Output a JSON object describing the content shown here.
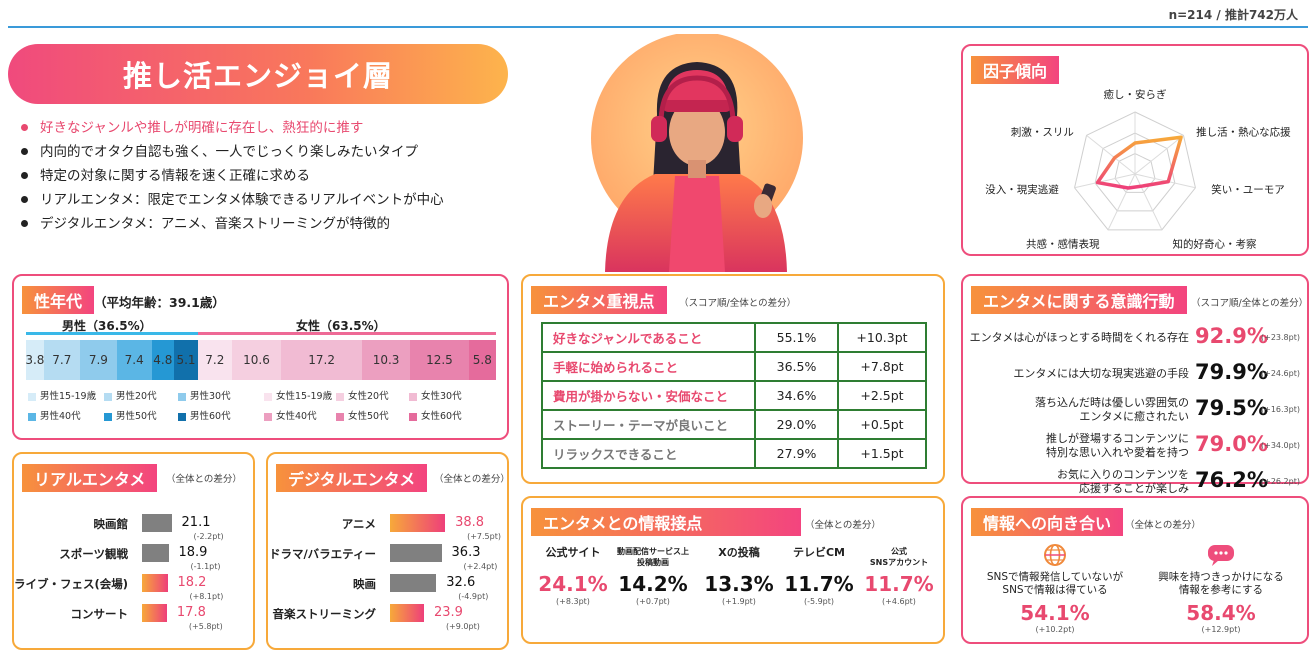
{
  "header": {
    "sample": "n=214 / 推計742万人"
  },
  "hero": {
    "title": "推し活エンジョイ層"
  },
  "bullets": [
    "好きなジャンルや推しが明確に存在し、熱狂的に推す",
    "内向的でオタク自認も強く、一人でじっくり楽しみたいタイプ",
    "特定の対象に関する情報を速く正確に求める",
    "リアルエンタメ：限定でエンタメ体験できるリアルイベントが中心",
    "デジタルエンタメ：アニメ、音楽ストリーミングが特徴的"
  ],
  "colors": {
    "orange": "#f7a93a",
    "pink": "#ee4d7c",
    "accent_text": "#e8496f",
    "table_border": "#2e7d32"
  },
  "factor": {
    "title": "因子傾向",
    "chart_data": {
      "type": "radar",
      "axes": [
        "癒し・安らぎ",
        "推し活・熱心な応援",
        "笑い・ユーモア",
        "知的好奇心・考察",
        "共感・感情表現",
        "没入・現実逃避",
        "刺激・スリル"
      ],
      "values": [
        0.5,
        0.95,
        0.55,
        0.22,
        0.25,
        0.62,
        0.42
      ],
      "grid": true
    }
  },
  "demo": {
    "title": "性年代",
    "avg": "（平均年齢：39.1歳）",
    "male_label": "男性（36.5%）",
    "female_label": "女性（63.5%）",
    "chart_data": {
      "type": "bar",
      "stacked": true,
      "categories": [
        "男性15-19歳",
        "男性20代",
        "男性30代",
        "男性40代",
        "男性50代",
        "男性60代",
        "女性15-19歳",
        "女性20代",
        "女性30代",
        "女性40代",
        "女性50代",
        "女性60代"
      ],
      "values": [
        3.8,
        7.7,
        7.9,
        7.4,
        4.8,
        5.1,
        7.2,
        10.6,
        17.2,
        10.3,
        12.5,
        5.8
      ],
      "colors": [
        "#d6ecf8",
        "#b5dcf2",
        "#8fcbec",
        "#5bb6e5",
        "#2598d4",
        "#1170ab",
        "#f9e3ee",
        "#f5cfe0",
        "#f1bbd3",
        "#ec9fc0",
        "#e883ad",
        "#e56b9c"
      ]
    }
  },
  "juushi": {
    "title": "エンタメ重視点",
    "note": "（スコア順/全体との差分）",
    "rows": [
      {
        "label": "好きなジャンルであること",
        "value": "55.1%",
        "diff": "+10.3pt",
        "hl": true
      },
      {
        "label": "手軽に始められること",
        "value": "36.5%",
        "diff": "+7.8pt",
        "hl": true
      },
      {
        "label": "費用が掛からない・安価なこと",
        "value": "34.6%",
        "diff": "+2.5pt",
        "hl": true
      },
      {
        "label": "ストーリー・テーマが良いこと",
        "value": "29.0%",
        "diff": "+0.5pt",
        "hl": false
      },
      {
        "label": "リラックスできること",
        "value": "27.9%",
        "diff": "+1.5pt",
        "hl": false
      }
    ]
  },
  "ishiki": {
    "title": "エンタメに関する意識行動",
    "note": "（スコア順/全体との差分）",
    "rows": [
      {
        "l1": "エンタメは心がほっとする時間をくれる存在",
        "l2": "",
        "value": "92.9%",
        "diff": "(+23.8pt)",
        "hl": true
      },
      {
        "l1": "エンタメには大切な現実逃避の手段",
        "l2": "",
        "value": "79.9%",
        "diff": "(+24.6pt)",
        "hl": false
      },
      {
        "l1": "落ち込んだ時は優しい雰囲気の",
        "l2": "エンタメに癒されたい",
        "value": "79.5%",
        "diff": "(+16.3pt)",
        "hl": false
      },
      {
        "l1": "推しが登場するコンテンツに",
        "l2": "特別な思い入れや愛着を持つ",
        "value": "79.0%",
        "diff": "(+34.0pt)",
        "hl": true
      },
      {
        "l1": "お気に入りのコンテンツを",
        "l2": "応援することが楽しみ",
        "value": "76.2%",
        "diff": "(+26.2pt)",
        "hl": false
      }
    ]
  },
  "real": {
    "title": "リアルエンタメ",
    "note": "（全体との差分）",
    "chart_data": {
      "type": "bar",
      "orientation": "horizontal",
      "categories": [
        "映画館",
        "スポーツ観戦",
        "ライブ・フェス(会場)",
        "コンサート"
      ],
      "values": [
        21.1,
        18.9,
        18.2,
        17.8
      ],
      "diffs": [
        "(-2.2pt)",
        "(-1.1pt)",
        "(+8.1pt)",
        "(+5.8pt)"
      ],
      "highlight": [
        false,
        false,
        true,
        true
      ]
    }
  },
  "digital": {
    "title": "デジタルエンタメ",
    "note": "（全体との差分）",
    "chart_data": {
      "type": "bar",
      "orientation": "horizontal",
      "categories": [
        "アニメ",
        "ドラマ/バラエティー",
        "映画",
        "音楽ストリーミング"
      ],
      "values": [
        38.8,
        36.3,
        32.6,
        23.9
      ],
      "diffs": [
        "(+7.5pt)",
        "(+2.4pt)",
        "(-4.9pt)",
        "(+9.0pt)"
      ],
      "highlight": [
        true,
        false,
        false,
        true
      ]
    }
  },
  "joho": {
    "title": "エンタメとの情報接点",
    "note": "（全体との差分）",
    "items": [
      {
        "l1": "公式サイト",
        "l2": "",
        "value": "24.1%",
        "diff": "(+8.3pt)",
        "hl": true
      },
      {
        "l1": "動画配信サービス上",
        "l2": "投稿動画",
        "value": "14.2%",
        "diff": "(+0.7pt)",
        "hl": false
      },
      {
        "l1": "Xの投稿",
        "l2": "",
        "value": "13.3%",
        "diff": "(+1.9pt)",
        "hl": false
      },
      {
        "l1": "テレビCM",
        "l2": "",
        "value": "11.7%",
        "diff": "(-5.9pt)",
        "hl": false
      },
      {
        "l1": "公式",
        "l2": "SNSアカウント",
        "value": "11.7%",
        "diff": "(+4.6pt)",
        "hl": true
      }
    ]
  },
  "mukiai": {
    "title": "情報への向き合い",
    "note": "（全体との差分）",
    "items": [
      {
        "icon": "globe-icon",
        "l1": "SNSで情報発信していないが",
        "l2": "SNSで情報は得ている",
        "value": "54.1%",
        "diff": "(+10.2pt)"
      },
      {
        "icon": "chat-bubble-icon",
        "l1": "興味を持つきっかけになる",
        "l2": "情報を参考にする",
        "value": "58.4%",
        "diff": "(+12.9pt)"
      }
    ]
  }
}
